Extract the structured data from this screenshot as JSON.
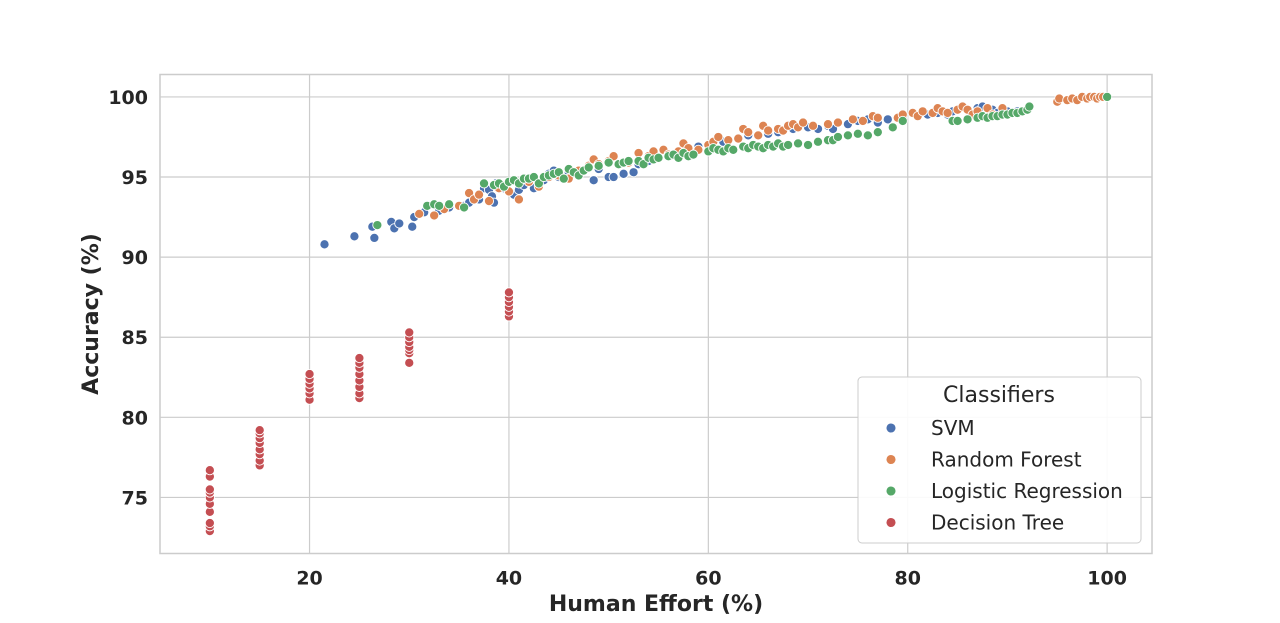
{
  "chart_data": {
    "type": "scatter",
    "xlabel": "Human Effort (%)",
    "ylabel": "Accuracy (%)",
    "xlim": [
      5,
      104.5
    ],
    "ylim": [
      71.5,
      101.4
    ],
    "xticks": [
      20,
      40,
      60,
      80,
      100
    ],
    "yticks": [
      75,
      80,
      85,
      90,
      95,
      100
    ],
    "grid": true,
    "legend": {
      "title": "Classifiers",
      "placement": "lower-right"
    },
    "series": [
      {
        "name": "SVM",
        "color": "#4c72b0",
        "points": [
          [
            21.5,
            90.8
          ],
          [
            24.5,
            91.3
          ],
          [
            26.3,
            91.9
          ],
          [
            26.5,
            91.2
          ],
          [
            28.2,
            92.2
          ],
          [
            28.5,
            91.8
          ],
          [
            29,
            92.1
          ],
          [
            30.3,
            91.9
          ],
          [
            30.5,
            92.5
          ],
          [
            31.5,
            92.8
          ],
          [
            33,
            92.9
          ],
          [
            34,
            93.1
          ],
          [
            35.5,
            93.2
          ],
          [
            36,
            93.4
          ],
          [
            37,
            93.6
          ],
          [
            37.5,
            94.3
          ],
          [
            38,
            94.2
          ],
          [
            38.3,
            93.8
          ],
          [
            38.5,
            93.4
          ],
          [
            38.7,
            94.6
          ],
          [
            39.5,
            94.3
          ],
          [
            40.5,
            93.9
          ],
          [
            41,
            94.2
          ],
          [
            41.5,
            94.5
          ],
          [
            42,
            94.7
          ],
          [
            42.5,
            94.3
          ],
          [
            43,
            94.5
          ],
          [
            43.5,
            94.8
          ],
          [
            44,
            95.2
          ],
          [
            44.5,
            95.4
          ],
          [
            45,
            95.0
          ],
          [
            46,
            95.3
          ],
          [
            47,
            95.2
          ],
          [
            48,
            95.6
          ],
          [
            48.5,
            94.8
          ],
          [
            49,
            95.5
          ],
          [
            50,
            95.0
          ],
          [
            50.5,
            95.0
          ],
          [
            51.5,
            95.2
          ],
          [
            52.5,
            95.3
          ],
          [
            53,
            95.8
          ],
          [
            54,
            96.0
          ],
          [
            55,
            96.2
          ],
          [
            56,
            96.3
          ],
          [
            57,
            96.4
          ],
          [
            58,
            96.6
          ],
          [
            59,
            96.9
          ],
          [
            60,
            97.0
          ],
          [
            61.5,
            97.2
          ],
          [
            62,
            97.3
          ],
          [
            63,
            97.4
          ],
          [
            64,
            97.6
          ],
          [
            65,
            97.6
          ],
          [
            66,
            97.7
          ],
          [
            67,
            97.8
          ],
          [
            67.5,
            97.9
          ],
          [
            68.5,
            98.0
          ],
          [
            70,
            98.1
          ],
          [
            71,
            98.0
          ],
          [
            72,
            98.2
          ],
          [
            72.5,
            98.0
          ],
          [
            74,
            98.3
          ],
          [
            75,
            98.5
          ],
          [
            76,
            98.6
          ],
          [
            77,
            98.4
          ],
          [
            78,
            98.6
          ],
          [
            79.5,
            98.7
          ],
          [
            81,
            98.8
          ],
          [
            82,
            98.9
          ],
          [
            83,
            99.0
          ],
          [
            84,
            98.9
          ],
          [
            84.5,
            99.1
          ],
          [
            85,
            99.2
          ],
          [
            86,
            99.2
          ],
          [
            87,
            99.3
          ],
          [
            87.5,
            99.4
          ],
          [
            88,
            99.3
          ],
          [
            88.5,
            99.2
          ],
          [
            89,
            99.0
          ],
          [
            90,
            99.1
          ],
          [
            91,
            99.1
          ]
        ]
      },
      {
        "name": "Random Forest",
        "color": "#dd8452",
        "points": [
          [
            31,
            92.7
          ],
          [
            32.5,
            92.6
          ],
          [
            33.5,
            93.0
          ],
          [
            35,
            93.2
          ],
          [
            36,
            94.0
          ],
          [
            36.5,
            93.6
          ],
          [
            37,
            93.9
          ],
          [
            38,
            93.5
          ],
          [
            39,
            94.3
          ],
          [
            40,
            94.1
          ],
          [
            41,
            93.6
          ],
          [
            42,
            94.7
          ],
          [
            43,
            94.4
          ],
          [
            44,
            95.0
          ],
          [
            45,
            95.1
          ],
          [
            46,
            94.9
          ],
          [
            47,
            95.4
          ],
          [
            48,
            95.7
          ],
          [
            48.5,
            96.1
          ],
          [
            49,
            95.8
          ],
          [
            50,
            96.0
          ],
          [
            50.5,
            96.3
          ],
          [
            52,
            95.9
          ],
          [
            53,
            96.5
          ],
          [
            54,
            96.3
          ],
          [
            54.5,
            96.6
          ],
          [
            55.5,
            96.7
          ],
          [
            56,
            96.4
          ],
          [
            57,
            96.6
          ],
          [
            57.5,
            97.1
          ],
          [
            58,
            96.8
          ],
          [
            59,
            96.7
          ],
          [
            60,
            97.0
          ],
          [
            60.5,
            97.2
          ],
          [
            61,
            97.5
          ],
          [
            62,
            97.3
          ],
          [
            63,
            97.4
          ],
          [
            63.5,
            98.0
          ],
          [
            64,
            97.8
          ],
          [
            65,
            97.6
          ],
          [
            65.5,
            98.2
          ],
          [
            66,
            97.9
          ],
          [
            67,
            98.0
          ],
          [
            67.5,
            97.9
          ],
          [
            68,
            98.2
          ],
          [
            68.5,
            98.3
          ],
          [
            69,
            98.1
          ],
          [
            69.5,
            98.4
          ],
          [
            70.5,
            98.2
          ],
          [
            72,
            98.3
          ],
          [
            73,
            98.4
          ],
          [
            74.5,
            98.6
          ],
          [
            75.5,
            98.5
          ],
          [
            76.5,
            98.8
          ],
          [
            77,
            98.7
          ],
          [
            79,
            98.7
          ],
          [
            79.5,
            98.9
          ],
          [
            80.5,
            99.0
          ],
          [
            81,
            98.8
          ],
          [
            81.5,
            99.1
          ],
          [
            82.5,
            99.0
          ],
          [
            83,
            99.3
          ],
          [
            83.5,
            99.1
          ],
          [
            84,
            99.0
          ],
          [
            85,
            99.2
          ],
          [
            85.5,
            99.4
          ],
          [
            86,
            99.2
          ],
          [
            86.5,
            98.9
          ],
          [
            87,
            99.1
          ],
          [
            88,
            99.3
          ],
          [
            88.5,
            98.9
          ],
          [
            89.5,
            99.3
          ],
          [
            95,
            99.7
          ],
          [
            95.2,
            99.9
          ],
          [
            96,
            99.8
          ],
          [
            96.5,
            99.9
          ],
          [
            97,
            99.8
          ],
          [
            97.5,
            100.0
          ],
          [
            98,
            99.9
          ],
          [
            98.3,
            100.0
          ],
          [
            98.7,
            100.0
          ],
          [
            99,
            99.9
          ],
          [
            99.3,
            100.0
          ],
          [
            99.6,
            100.0
          ]
        ]
      },
      {
        "name": "Logistic Regression",
        "color": "#55a868",
        "points": [
          [
            26.8,
            92.0
          ],
          [
            31.8,
            93.2
          ],
          [
            32.5,
            93.3
          ],
          [
            33,
            93.2
          ],
          [
            34,
            93.3
          ],
          [
            35.5,
            93.1
          ],
          [
            37.5,
            94.6
          ],
          [
            38.5,
            94.5
          ],
          [
            39,
            94.6
          ],
          [
            39.5,
            94.4
          ],
          [
            40,
            94.7
          ],
          [
            40.5,
            94.8
          ],
          [
            41,
            94.6
          ],
          [
            41.5,
            94.9
          ],
          [
            42,
            94.9
          ],
          [
            42.5,
            95.0
          ],
          [
            43,
            94.6
          ],
          [
            43.5,
            95.0
          ],
          [
            44,
            95.1
          ],
          [
            44.5,
            95.2
          ],
          [
            45,
            95.3
          ],
          [
            45.5,
            94.9
          ],
          [
            46,
            95.5
          ],
          [
            46.5,
            95.3
          ],
          [
            47,
            95.1
          ],
          [
            47.5,
            95.4
          ],
          [
            48,
            95.6
          ],
          [
            49,
            95.7
          ],
          [
            50,
            95.9
          ],
          [
            51,
            95.8
          ],
          [
            51.5,
            95.9
          ],
          [
            52,
            96.0
          ],
          [
            53,
            96.0
          ],
          [
            53.5,
            95.8
          ],
          [
            54,
            96.2
          ],
          [
            54.5,
            96.1
          ],
          [
            55,
            96.2
          ],
          [
            56,
            96.3
          ],
          [
            56.5,
            96.4
          ],
          [
            57,
            96.2
          ],
          [
            57.5,
            96.5
          ],
          [
            58,
            96.3
          ],
          [
            58.5,
            96.4
          ],
          [
            60,
            96.6
          ],
          [
            60.5,
            96.8
          ],
          [
            61,
            96.7
          ],
          [
            61.5,
            96.6
          ],
          [
            62,
            96.8
          ],
          [
            62.5,
            96.7
          ],
          [
            63.5,
            96.9
          ],
          [
            64,
            96.8
          ],
          [
            64.5,
            97.0
          ],
          [
            65,
            96.9
          ],
          [
            65.5,
            96.8
          ],
          [
            66,
            97.0
          ],
          [
            66.5,
            96.9
          ],
          [
            67,
            97.1
          ],
          [
            67.5,
            96.9
          ],
          [
            68,
            97.0
          ],
          [
            69,
            97.1
          ],
          [
            70,
            97.0
          ],
          [
            71,
            97.2
          ],
          [
            72,
            97.3
          ],
          [
            72.5,
            97.3
          ],
          [
            73,
            97.5
          ],
          [
            74,
            97.6
          ],
          [
            75,
            97.7
          ],
          [
            76,
            97.6
          ],
          [
            77,
            97.8
          ],
          [
            78.5,
            98.1
          ],
          [
            79.5,
            98.5
          ],
          [
            84.5,
            98.5
          ],
          [
            85,
            98.5
          ],
          [
            86,
            98.6
          ],
          [
            87,
            98.7
          ],
          [
            87.5,
            98.8
          ],
          [
            88,
            98.7
          ],
          [
            88.5,
            98.8
          ],
          [
            89,
            98.8
          ],
          [
            89.5,
            98.9
          ],
          [
            90,
            98.9
          ],
          [
            90.5,
            99.0
          ],
          [
            91,
            99.0
          ],
          [
            91.5,
            99.1
          ],
          [
            92,
            99.2
          ],
          [
            92.2,
            99.4
          ],
          [
            100,
            100.0
          ]
        ]
      },
      {
        "name": "Decision Tree",
        "color": "#c44e52",
        "points": [
          [
            10,
            72.9
          ],
          [
            10,
            73.2
          ],
          [
            10,
            73.4
          ],
          [
            10,
            74.1
          ],
          [
            10,
            74.6
          ],
          [
            10,
            75.0
          ],
          [
            10,
            75.3
          ],
          [
            10,
            75.5
          ],
          [
            10,
            76.3
          ],
          [
            10,
            76.7
          ],
          [
            15,
            77.0
          ],
          [
            15,
            77.3
          ],
          [
            15,
            77.7
          ],
          [
            15,
            78.0
          ],
          [
            15,
            78.4
          ],
          [
            15,
            78.7
          ],
          [
            15,
            79.0
          ],
          [
            15,
            79.2
          ],
          [
            20,
            81.1
          ],
          [
            20,
            81.5
          ],
          [
            20,
            81.8
          ],
          [
            20,
            82.1
          ],
          [
            20,
            82.4
          ],
          [
            20,
            82.7
          ],
          [
            25,
            81.2
          ],
          [
            25,
            81.5
          ],
          [
            25,
            81.9
          ],
          [
            25,
            82.3
          ],
          [
            25,
            82.7
          ],
          [
            25,
            83.1
          ],
          [
            25,
            83.4
          ],
          [
            25,
            83.7
          ],
          [
            30,
            83.4
          ],
          [
            30,
            84.0
          ],
          [
            30,
            84.2
          ],
          [
            30,
            84.4
          ],
          [
            30,
            84.7
          ],
          [
            30,
            85.0
          ],
          [
            30,
            85.3
          ],
          [
            40,
            86.3
          ],
          [
            40,
            86.6
          ],
          [
            40,
            86.9
          ],
          [
            40,
            87.2
          ],
          [
            40,
            87.5
          ],
          [
            40,
            87.8
          ]
        ]
      }
    ]
  }
}
